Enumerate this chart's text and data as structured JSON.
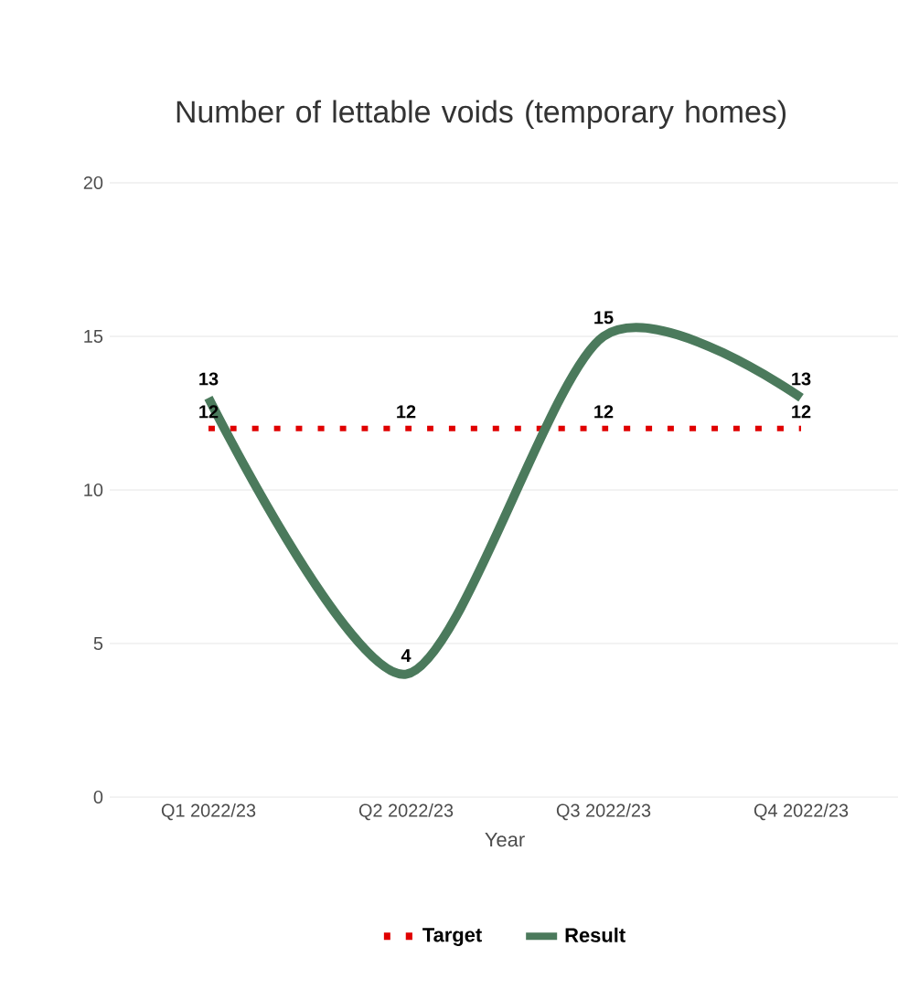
{
  "chart_data": {
    "type": "line",
    "title": "Number of lettable voids (temporary homes)",
    "xlabel": "Year",
    "categories": [
      "Q1 2022/23",
      "Q2 2022/23",
      "Q3 2022/23",
      "Q4 2022/23"
    ],
    "series": [
      {
        "name": "Target",
        "color": "#e00000",
        "line_style": "dotted",
        "values": [
          12,
          12,
          12,
          12
        ]
      },
      {
        "name": "Result",
        "color": "#4b7a5c",
        "line_style": "solid",
        "values": [
          13,
          4,
          15,
          13
        ]
      }
    ],
    "ylim": [
      0,
      20
    ],
    "yticks": [
      0,
      5,
      10,
      15,
      20
    ],
    "grid": "y",
    "legend": "bottom",
    "data_labels": true
  }
}
